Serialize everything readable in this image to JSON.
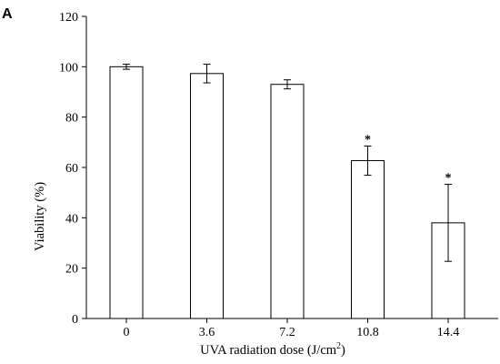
{
  "chart_data": {
    "type": "bar",
    "panel_label": "A",
    "categories": [
      "0",
      "3.6",
      "7.2",
      "10.8",
      "14.4"
    ],
    "values": [
      100,
      97.3,
      93,
      62.7,
      38
    ],
    "errors": [
      1,
      3.7,
      1.8,
      5.8,
      15.3
    ],
    "significance": [
      "",
      "",
      "",
      "*",
      "*"
    ],
    "xlabel": "UVA radiation dose (J/cm",
    "xlabel_sup": "2",
    "xlabel_suffix": ")",
    "ylabel": "Viability (%)",
    "ylim": [
      0,
      120
    ],
    "yticks": [
      0,
      20,
      40,
      60,
      80,
      100,
      120
    ],
    "bar_fill": "#ffffff",
    "bar_stroke": "#000000",
    "grid": false,
    "legend": "none"
  }
}
